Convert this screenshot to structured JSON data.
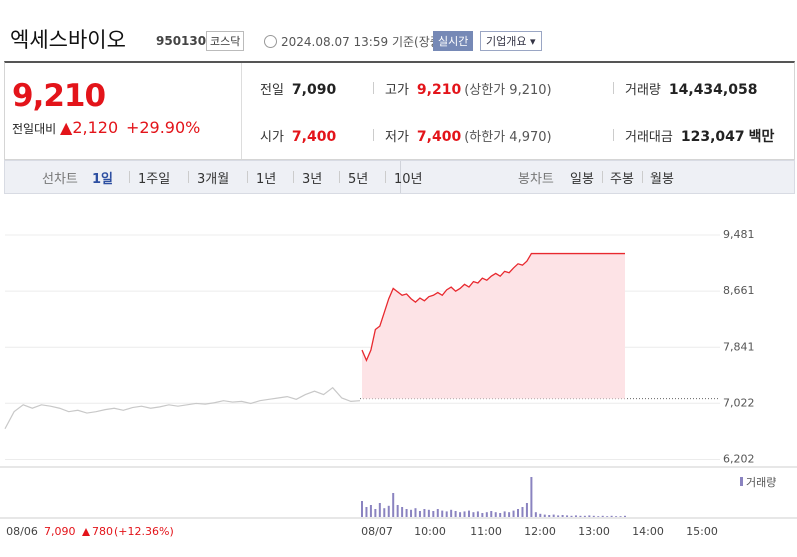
{
  "header": {
    "title": "엑세스바이오",
    "code": "950130",
    "market": "코스닥",
    "timestamp": "2024.08.07 13:59",
    "basis": "기준(장중)",
    "realtime_button": "실시간",
    "overview_button": "기업개요"
  },
  "price": {
    "current": "9,210",
    "change_label": "전일대비",
    "change": "2,120",
    "change_rate": "+29.90%"
  },
  "stats": [
    {
      "label": "전일",
      "value": "7,090"
    },
    {
      "label": "고가",
      "value": "9,210",
      "note": "(상한가 9,210)"
    },
    {
      "label": "거래량",
      "value": "14,434,058"
    },
    {
      "label": "시가",
      "value": "7,400"
    },
    {
      "label": "저가",
      "value": "7,400",
      "note": "(하한가 4,970)"
    },
    {
      "label": "거래대금",
      "value": "123,047",
      "unit": "백만"
    }
  ],
  "tabs": {
    "line_label": "선차트",
    "line": [
      "1일",
      "1주일",
      "3개월",
      "1년",
      "3년",
      "5년",
      "10년"
    ],
    "candle_label": "봉차트",
    "candle": [
      "일봉",
      "주봉",
      "월봉"
    ]
  },
  "chart": {
    "ylim": [
      6150,
      9890
    ],
    "yticks": [
      {
        "value": 9481,
        "label": "9,481"
      },
      {
        "value": 8661,
        "label": "8,661"
      },
      {
        "value": 7841,
        "label": "7,841"
      },
      {
        "value": 7022,
        "label": "7,022"
      },
      {
        "value": 6202,
        "label": "6,202"
      }
    ],
    "previous_close": 7090,
    "prev_day": [
      6650,
      6900,
      7000,
      6950,
      7000,
      6980,
      6950,
      6900,
      6920,
      6880,
      6900,
      6930,
      6950,
      6920,
      6960,
      6980,
      6950,
      6970,
      7000,
      6980,
      7000,
      7020,
      7010,
      7030,
      7060,
      7040,
      7050,
      7020,
      7060,
      7080,
      7100,
      7120,
      7080,
      7150,
      7200,
      7150,
      7250,
      7100,
      7050,
      7060
    ],
    "today": [
      7800,
      7650,
      7800,
      8100,
      8150,
      8350,
      8550,
      8700,
      8650,
      8600,
      8620,
      8550,
      8500,
      8560,
      8520,
      8580,
      8600,
      8640,
      8600,
      8680,
      8720,
      8660,
      8700,
      8760,
      8720,
      8800,
      8780,
      8850,
      8820,
      8880,
      8920,
      8880,
      8950,
      8930,
      9000,
      9060,
      9040,
      9100,
      9210,
      9210,
      9210,
      9210,
      9210,
      9210,
      9210,
      9210,
      9210,
      9210,
      9210,
      9210,
      9210,
      9210,
      9210,
      9210,
      9210,
      9210,
      9210,
      9210,
      9210,
      9210
    ],
    "volume_label": "거래량",
    "volume": [
      40,
      25,
      30,
      20,
      35,
      22,
      28,
      60,
      30,
      25,
      20,
      18,
      22,
      15,
      20,
      18,
      15,
      20,
      16,
      14,
      18,
      15,
      12,
      14,
      16,
      12,
      14,
      10,
      12,
      15,
      12,
      10,
      14,
      12,
      16,
      20,
      25,
      35,
      100,
      12,
      8,
      6,
      5,
      6,
      4,
      5,
      4,
      3,
      4,
      3,
      3,
      4,
      3,
      2,
      3,
      2,
      3,
      2,
      2,
      3
    ],
    "x_labels": [
      "08/06",
      "08/07",
      "10:00",
      "11:00",
      "12:00",
      "13:00",
      "14:00",
      "15:00"
    ],
    "prev_summary": {
      "close": "7,090",
      "change": "780",
      "rate": "(+12.36%)"
    }
  }
}
